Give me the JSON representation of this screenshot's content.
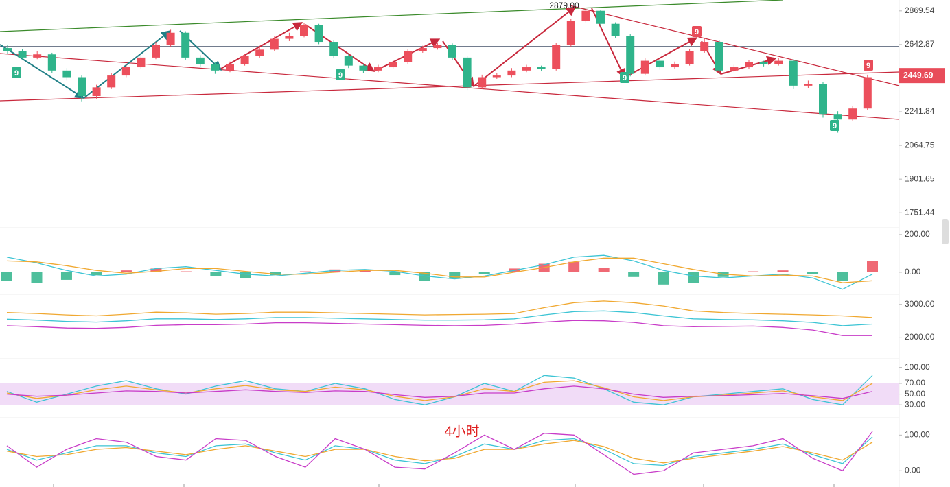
{
  "annotation": "4小时",
  "chart_data": [
    {
      "type": "candlestick",
      "log_scale": true,
      "ylim": [
        1700,
        2927
      ],
      "yticks": [
        2869.54,
        2642.87,
        2241.84,
        2064.75,
        1901.65,
        1751.44
      ],
      "last_price": 2449.69,
      "last_price_color": "#e84c5a",
      "high_label": "2879.00",
      "up_color": "#ec4f5c",
      "down_color": "#2fb48b",
      "markers": [
        {
          "label": "9",
          "color": "#2fb48b"
        },
        {
          "label": "9",
          "color": "#2fb48b"
        },
        {
          "label": "9",
          "color": "#2fb48b"
        },
        {
          "label": "9",
          "color": "#2fb48b"
        },
        {
          "label": "9",
          "color": "#e84c5a"
        },
        {
          "label": "9",
          "color": "#e84c5a"
        }
      ],
      "candles": [
        [
          2620,
          2640,
          2585,
          2600
        ],
        [
          2600,
          2615,
          2545,
          2560
        ],
        [
          2560,
          2600,
          2550,
          2580
        ],
        [
          2580,
          2590,
          2465,
          2480
        ],
        [
          2480,
          2495,
          2420,
          2440
        ],
        [
          2440,
          2450,
          2300,
          2330
        ],
        [
          2330,
          2395,
          2315,
          2380
        ],
        [
          2380,
          2465,
          2370,
          2450
        ],
        [
          2450,
          2515,
          2440,
          2500
        ],
        [
          2500,
          2575,
          2490,
          2560
        ],
        [
          2560,
          2660,
          2550,
          2640
        ],
        [
          2640,
          2740,
          2630,
          2720
        ],
        [
          2720,
          2730,
          2545,
          2560
        ],
        [
          2560,
          2575,
          2505,
          2520
        ],
        [
          2520,
          2530,
          2460,
          2480
        ],
        [
          2480,
          2535,
          2470,
          2520
        ],
        [
          2520,
          2585,
          2510,
          2570
        ],
        [
          2570,
          2625,
          2560,
          2610
        ],
        [
          2610,
          2695,
          2600,
          2680
        ],
        [
          2680,
          2720,
          2665,
          2700
        ],
        [
          2700,
          2785,
          2690,
          2770
        ],
        [
          2770,
          2780,
          2645,
          2660
        ],
        [
          2660,
          2670,
          2555,
          2570
        ],
        [
          2570,
          2580,
          2495,
          2510
        ],
        [
          2510,
          2520,
          2465,
          2480
        ],
        [
          2480,
          2515,
          2470,
          2500
        ],
        [
          2500,
          2545,
          2490,
          2530
        ],
        [
          2530,
          2615,
          2520,
          2600
        ],
        [
          2600,
          2635,
          2590,
          2620
        ],
        [
          2620,
          2655,
          2610,
          2640
        ],
        [
          2640,
          2650,
          2545,
          2560
        ],
        [
          2560,
          2570,
          2365,
          2380
        ],
        [
          2380,
          2455,
          2370,
          2440
        ],
        [
          2440,
          2465,
          2430,
          2450
        ],
        [
          2450,
          2495,
          2440,
          2480
        ],
        [
          2480,
          2515,
          2470,
          2500
        ],
        [
          2500,
          2510,
          2475,
          2490
        ],
        [
          2490,
          2655,
          2480,
          2640
        ],
        [
          2640,
          2815,
          2630,
          2800
        ],
        [
          2800,
          2879,
          2790,
          2870
        ],
        [
          2870,
          2875,
          2765,
          2780
        ],
        [
          2780,
          2790,
          2685,
          2700
        ],
        [
          2700,
          2710,
          2445,
          2460
        ],
        [
          2460,
          2555,
          2450,
          2540
        ],
        [
          2540,
          2550,
          2485,
          2500
        ],
        [
          2500,
          2535,
          2490,
          2520
        ],
        [
          2520,
          2615,
          2510,
          2600
        ],
        [
          2600,
          2680,
          2590,
          2660
        ],
        [
          2660,
          2670,
          2465,
          2480
        ],
        [
          2480,
          2515,
          2470,
          2500
        ],
        [
          2500,
          2545,
          2490,
          2530
        ],
        [
          2530,
          2540,
          2505,
          2520
        ],
        [
          2520,
          2555,
          2510,
          2540
        ],
        [
          2540,
          2550,
          2370,
          2390
        ],
        [
          2390,
          2420,
          2375,
          2400
        ],
        [
          2400,
          2410,
          2210,
          2230
        ],
        [
          2230,
          2245,
          2130,
          2200
        ],
        [
          2200,
          2275,
          2190,
          2260
        ],
        [
          2260,
          2455,
          2250,
          2440
        ]
      ]
    },
    {
      "type": "macd",
      "ylim": [
        -102,
        225
      ],
      "yticks": [
        {
          "value": 200,
          "label": "200.00"
        },
        {
          "value": 0,
          "label": "0.00"
        }
      ],
      "hist_colors": [
        "#ec4f5c",
        "#2fb48b"
      ],
      "histogram": [
        -45,
        -55,
        -40,
        -15,
        10,
        20,
        5,
        -20,
        -30,
        -15,
        5,
        15,
        10,
        -15,
        -45,
        -35,
        -10,
        20,
        45,
        55,
        25,
        -25,
        -65,
        -55,
        -25,
        5,
        10,
        -10,
        -45,
        60
      ],
      "series": [
        {
          "color": "#3cc4d4",
          "values": [
            80,
            50,
            10,
            -20,
            -10,
            20,
            30,
            10,
            -10,
            -20,
            -5,
            10,
            15,
            5,
            -20,
            -35,
            -20,
            10,
            40,
            80,
            90,
            60,
            10,
            -20,
            -30,
            -20,
            -10,
            -30,
            -90,
            -10
          ]
        },
        {
          "color": "#f0a830",
          "values": [
            60,
            55,
            35,
            10,
            -5,
            5,
            20,
            20,
            5,
            -10,
            -10,
            0,
            10,
            10,
            -5,
            -25,
            -25,
            0,
            25,
            55,
            75,
            75,
            45,
            15,
            -10,
            -20,
            -15,
            -20,
            -55,
            -45
          ]
        }
      ]
    },
    {
      "type": "line",
      "ylim": [
        1408,
        3245
      ],
      "yticks": [
        {
          "value": 3000,
          "label": "3000.00"
        },
        {
          "value": 2000,
          "label": "2000.00"
        }
      ],
      "series": [
        {
          "color": "#f0a830",
          "values": [
            2750,
            2720,
            2680,
            2650,
            2700,
            2760,
            2740,
            2700,
            2720,
            2760,
            2760,
            2740,
            2720,
            2700,
            2680,
            2690,
            2700,
            2720,
            2900,
            3050,
            3100,
            3050,
            2950,
            2800,
            2750,
            2720,
            2700,
            2680,
            2650,
            2600
          ]
        },
        {
          "color": "#3cc4d4",
          "values": [
            2550,
            2520,
            2480,
            2460,
            2500,
            2560,
            2560,
            2540,
            2560,
            2600,
            2600,
            2580,
            2560,
            2540,
            2520,
            2520,
            2530,
            2560,
            2680,
            2780,
            2800,
            2750,
            2650,
            2560,
            2540,
            2530,
            2500,
            2450,
            2350,
            2400
          ]
        },
        {
          "color": "#c83cc8",
          "values": [
            2350,
            2320,
            2280,
            2270,
            2300,
            2360,
            2380,
            2380,
            2400,
            2440,
            2440,
            2420,
            2400,
            2380,
            2360,
            2350,
            2360,
            2400,
            2460,
            2510,
            2500,
            2450,
            2350,
            2320,
            2330,
            2340,
            2300,
            2220,
            2050,
            2050
          ]
        }
      ]
    },
    {
      "type": "line",
      "ylim": [
        11,
        111
      ],
      "yticks": [
        {
          "value": 100,
          "label": "100.00"
        },
        {
          "value": 70,
          "label": "70.00"
        },
        {
          "value": 50,
          "label": "50.00"
        },
        {
          "value": 30,
          "label": "30.00"
        }
      ],
      "band": [
        30,
        70
      ],
      "band_color": "#f1dcf7",
      "series": [
        {
          "color": "#3cc4d4",
          "values": [
            55,
            35,
            50,
            65,
            75,
            60,
            50,
            65,
            75,
            60,
            55,
            70,
            60,
            40,
            30,
            45,
            70,
            55,
            85,
            80,
            60,
            35,
            30,
            45,
            50,
            55,
            60,
            40,
            30,
            85
          ]
        },
        {
          "color": "#f0a830",
          "values": [
            52,
            42,
            48,
            58,
            65,
            58,
            52,
            60,
            66,
            58,
            55,
            63,
            58,
            46,
            38,
            45,
            60,
            55,
            72,
            75,
            62,
            45,
            38,
            45,
            48,
            52,
            56,
            45,
            38,
            70
          ]
        },
        {
          "color": "#c83cc8",
          "values": [
            50,
            46,
            48,
            52,
            56,
            55,
            52,
            55,
            58,
            55,
            53,
            56,
            55,
            49,
            44,
            46,
            52,
            52,
            60,
            65,
            60,
            50,
            44,
            46,
            47,
            49,
            51,
            47,
            42,
            55
          ]
        }
      ]
    },
    {
      "type": "line",
      "ylim": [
        -38,
        143
      ],
      "yticks": [
        {
          "value": 100,
          "label": "100.00"
        },
        {
          "value": 0,
          "label": "0.00"
        }
      ],
      "series": [
        {
          "color": "#3cc4d4",
          "values": [
            60,
            30,
            50,
            70,
            70,
            50,
            40,
            70,
            75,
            50,
            30,
            70,
            60,
            30,
            20,
            40,
            75,
            60,
            85,
            90,
            60,
            20,
            15,
            40,
            50,
            60,
            75,
            45,
            20,
            95
          ]
        },
        {
          "color": "#f0a830",
          "values": [
            55,
            40,
            45,
            60,
            65,
            55,
            45,
            60,
            70,
            55,
            40,
            60,
            60,
            40,
            28,
            35,
            60,
            60,
            75,
            85,
            68,
            35,
            22,
            35,
            45,
            55,
            68,
            50,
            30,
            80
          ]
        },
        {
          "color": "#c83cc8",
          "values": [
            70,
            10,
            60,
            90,
            80,
            40,
            30,
            90,
            85,
            40,
            10,
            90,
            60,
            10,
            5,
            50,
            100,
            60,
            105,
            100,
            45,
            -10,
            0,
            50,
            60,
            70,
            90,
            35,
            0,
            110
          ]
        }
      ]
    }
  ]
}
